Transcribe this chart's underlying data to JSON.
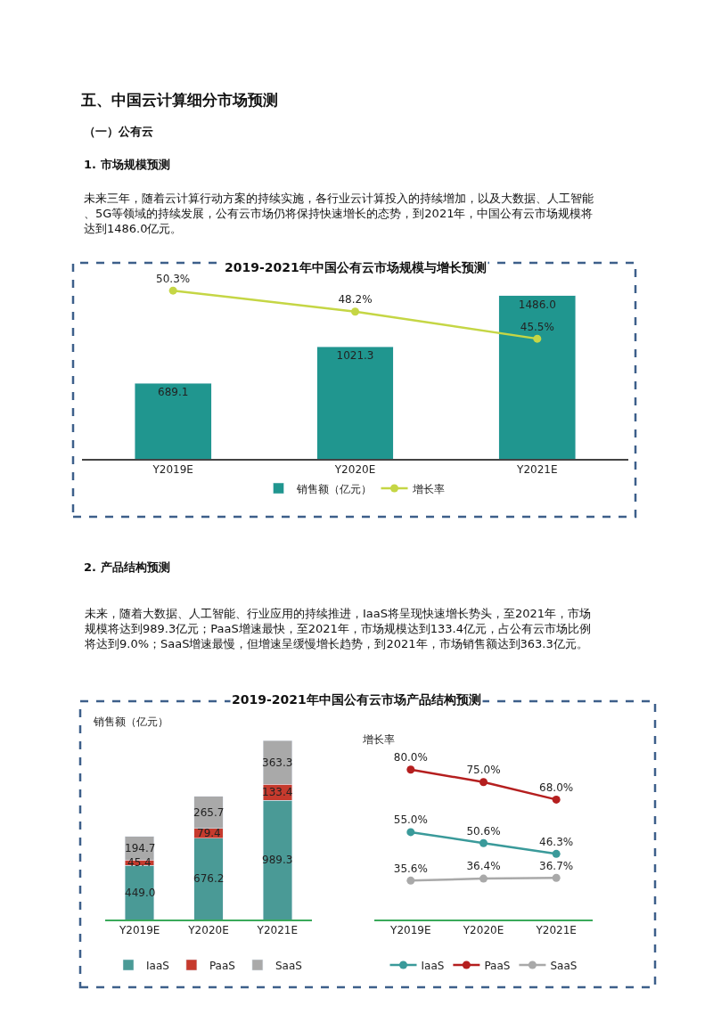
{
  "chart_data": [
    {
      "type": "bar",
      "title": "2019-2021年中国公有云市场规模与增长预测",
      "categories": [
        "Y2019E",
        "Y2020E",
        "Y2021E"
      ],
      "series": [
        {
          "name": "销售额（亿元）",
          "type": "bar",
          "color": "#20968f",
          "values": [
            689.1,
            1021.3,
            1486.0
          ],
          "value_labels": [
            "689.1",
            "1021.3",
            "1486.0"
          ]
        },
        {
          "name": "增长率",
          "type": "line",
          "axis": "y2",
          "color": "#c5d645",
          "values": [
            50.3,
            48.2,
            45.5
          ],
          "value_labels": [
            "50.3%",
            "48.2%",
            "45.5%"
          ]
        }
      ],
      "marker": "circle",
      "legend": "bottom",
      "annotations": [
        "五、中国云计算细分市场预测",
        "（一）公有云",
        "1. 市场规模预测",
        "未来三年，随着云计算行动方案的持续实施，各行业云计算投入的持续增加，以及大数据、人工智能、5G等领域的持续发展，公有云市场仍将保持快速增长的态势，到2021年，中国公有云市场规模将达到1486.0亿元。"
      ]
    },
    {
      "type": "bar",
      "title": "2019-2021年中国公有云市场产品结构预测",
      "ylabel": "销售额（亿元）",
      "categories": [
        "Y2019E",
        "Y2020E",
        "Y2021E"
      ],
      "stacked": true,
      "series": [
        {
          "name": "IaaS",
          "color": "#4a9a96",
          "values": [
            449.0,
            676.2,
            989.3
          ],
          "value_labels": [
            "449.0",
            "676.2",
            "989.3"
          ]
        },
        {
          "name": "PaaS",
          "color": "#c63a2d",
          "values": [
            45.4,
            79.4,
            133.4
          ],
          "value_labels": [
            "45.4",
            "79.4",
            "133.4"
          ]
        },
        {
          "name": "SaaS",
          "color": "#a9a9a9",
          "values": [
            194.7,
            265.7,
            363.3
          ],
          "value_labels": [
            "194.7",
            "265.7",
            "363.3"
          ]
        }
      ],
      "legend": "bottom",
      "annotations": [
        "2. 产品结构预测",
        "未来，随着大数据、人工智能、行业应用的持续推进，IaaS将呈现快速增长势头，至2021年，市场规模将达到989.3亿元；PaaS增速最快，至2021年，市场规模达到133.4亿元，占公有云市场比例将达到9.0%；SaaS增速最慢，但增速呈缓慢增长趋势，到2021年，市场销售额达到363.3亿元。"
      ]
    },
    {
      "type": "line",
      "ylabel": "增长率",
      "categories": [
        "Y2019E",
        "Y2020E",
        "Y2021E"
      ],
      "series": [
        {
          "name": "IaaS",
          "color": "#3a9a9a",
          "values": [
            55.0,
            50.6,
            46.3
          ],
          "value_labels": [
            "55.0%",
            "50.6%",
            "46.3%"
          ]
        },
        {
          "name": "PaaS",
          "color": "#b51f1f",
          "values": [
            80.0,
            75.0,
            68.0
          ],
          "value_labels": [
            "80.0%",
            "75.0%",
            "68.0%"
          ]
        },
        {
          "name": "SaaS",
          "color": "#a9a9a9",
          "values": [
            35.6,
            36.4,
            36.7
          ],
          "value_labels": [
            "35.6%",
            "36.4%",
            "36.7%"
          ]
        }
      ],
      "marker": "circle",
      "legend": "bottom"
    }
  ]
}
